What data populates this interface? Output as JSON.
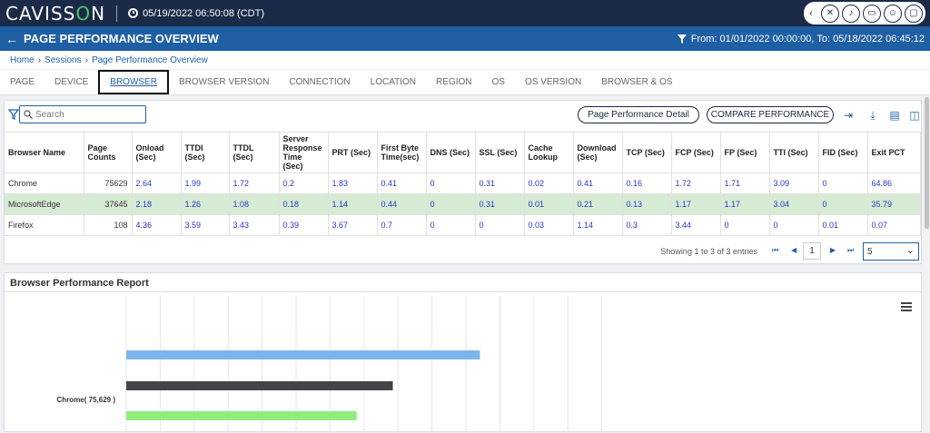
{
  "header": {
    "brand_prefix": "CAVISS",
    "brand_o": "O",
    "brand_suffix": "N",
    "datetime": "05/19/2022 06:50:08 (CDT)",
    "icons": [
      "tools-icon",
      "bell-icon",
      "window-icon",
      "user-icon",
      "monitor-icon"
    ]
  },
  "titlebar": {
    "title": "PAGE PERFORMANCE OVERVIEW",
    "date_range": "From: 01/01/2022 00:00:00, To: 05/18/2022 06:45:12"
  },
  "breadcrumb": [
    "Home",
    "Sessions",
    "Page Performance Overview"
  ],
  "tabs": [
    {
      "label": "PAGE",
      "active": false
    },
    {
      "label": "DEVICE",
      "active": false
    },
    {
      "label": "BROWSER",
      "active": true
    },
    {
      "label": "BROWSER VERSION",
      "active": false
    },
    {
      "label": "CONNECTION",
      "active": false
    },
    {
      "label": "LOCATION",
      "active": false
    },
    {
      "label": "REGION",
      "active": false
    },
    {
      "label": "OS",
      "active": false
    },
    {
      "label": "OS VERSION",
      "active": false
    },
    {
      "label": "BROWSER & OS",
      "active": false
    }
  ],
  "toolbar": {
    "search_placeholder": "Search",
    "detail_button": "Page Performance Detail",
    "compare_button": "COMPARE PERFORMANCE"
  },
  "table": {
    "columns": [
      "Browser Name",
      "Page Counts",
      "Onload (Sec)",
      "TTDI (Sec)",
      "TTDL (Sec)",
      "Server Response Time (Sec)",
      "PRT (Sec)",
      "First Byte Time(sec)",
      "DNS (Sec)",
      "SSL (Sec)",
      "Cache Lookup",
      "Download (Sec)",
      "TCP (Sec)",
      "FCP (Sec)",
      "FP (Sec)",
      "TTI (Sec)",
      "FID (Sec)",
      "Exit PCT"
    ],
    "rows": [
      [
        "Chrome",
        "75629",
        "2.64",
        "1.99",
        "1.72",
        "0.2",
        "1.83",
        "0.41",
        "0",
        "0.31",
        "0.02",
        "0.41",
        "0.16",
        "1.72",
        "1.71",
        "3.09",
        "0",
        "64.86"
      ],
      [
        "MicrosoftEdge",
        "37645",
        "2.18",
        "1.26",
        "1.08",
        "0.18",
        "1.14",
        "0.44",
        "0",
        "0.31",
        "0.01",
        "0.21",
        "0.13",
        "1.17",
        "1.17",
        "3.04",
        "0",
        "35.79"
      ],
      [
        "Firefox",
        "108",
        "4.36",
        "3.59",
        "3.43",
        "0.39",
        "3.67",
        "0.7",
        "0",
        "0",
        "0.03",
        "1.14",
        "0.3",
        "3.44",
        "0",
        "0",
        "0.01",
        "0.07"
      ]
    ],
    "selected_row": 1
  },
  "pager": {
    "info": "Showing 1 to 3 of 3 entries",
    "current_page": "1",
    "page_size": "5"
  },
  "report": {
    "title": "Browser Performance Report",
    "category_label": "Chrome( 75,629 )"
  },
  "chart_data": {
    "type": "bar",
    "orientation": "horizontal",
    "categories": [
      "Chrome( 75,629 )"
    ],
    "series": [
      {
        "color": "#7cb5ec",
        "values": [
          2.64
        ]
      },
      {
        "color": "#434348",
        "values": [
          1.99
        ]
      },
      {
        "color": "#90ed7d",
        "values": [
          1.72
        ]
      }
    ],
    "xlim": [
      0,
      6.5
    ],
    "grid": true
  }
}
